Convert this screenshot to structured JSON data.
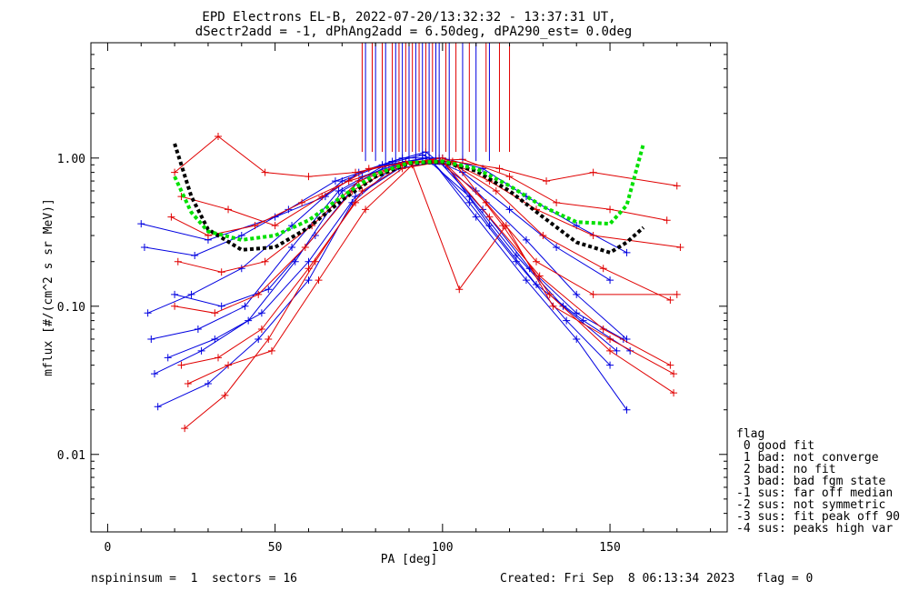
{
  "title_line1": "EPD Electrons EL-B, 2022-07-20/13:32:32 - 13:37:31 UT,",
  "title_line2": "dSectr2add = -1, dPhAng2add = 6.50deg, dPA290_est=   0.0deg",
  "footer_left": "nspininsum =  1  sectors = 16",
  "footer_right": "Created: Fri Sep  8 06:13:34 2023   flag = 0",
  "legend": {
    "title": "flag",
    "items": [
      " 0 good fit",
      " 1 bad: not converge",
      " 2 bad: no fit",
      " 3 bad: bad fgm state",
      "-1 sus: far off median",
      "-2 sus: not symmetric",
      "-3 sus: fit peak off 90",
      "-4 sus: peaks high var"
    ]
  },
  "colors": {
    "red": "#e00000",
    "blue": "#0000e0",
    "fit_black": "#000000",
    "fit_green": "#00e000"
  },
  "chart_data": {
    "type": "line",
    "xlabel": "PA [deg]",
    "ylabel": "mflux [#/(cm^2 s sr MeV)]",
    "xlim": [
      -5,
      185
    ],
    "ylim": [
      0.003,
      6
    ],
    "yscale": "log",
    "xticks": [
      0,
      50,
      100,
      150
    ],
    "xtick_labels": [
      "0",
      "50",
      "100",
      "150"
    ],
    "yticks": [
      0.01,
      0.1,
      1.0
    ],
    "ytick_labels": [
      "0.01",
      "0.10",
      "1.00"
    ],
    "series": [
      {
        "color": "blue",
        "points": [
          [
            10,
            0.36
          ],
          [
            30,
            0.28
          ],
          [
            50,
            0.4
          ],
          [
            65,
            0.55
          ],
          [
            75,
            0.8
          ],
          [
            88,
            1.0
          ],
          [
            100,
            1.0
          ],
          [
            112,
            0.85
          ],
          [
            125,
            0.55
          ],
          [
            140,
            0.35
          ],
          [
            155,
            0.23
          ]
        ]
      },
      {
        "color": "blue",
        "points": [
          [
            12,
            0.09
          ],
          [
            25,
            0.12
          ],
          [
            40,
            0.18
          ],
          [
            55,
            0.35
          ],
          [
            70,
            0.7
          ],
          [
            85,
            0.95
          ],
          [
            95,
            1.1
          ],
          [
            110,
            0.6
          ],
          [
            125,
            0.28
          ],
          [
            140,
            0.12
          ],
          [
            155,
            0.06
          ]
        ]
      },
      {
        "color": "blue",
        "points": [
          [
            14,
            0.035
          ],
          [
            28,
            0.05
          ],
          [
            42,
            0.08
          ],
          [
            56,
            0.2
          ],
          [
            70,
            0.6
          ],
          [
            84,
            0.9
          ],
          [
            96,
            1.0
          ],
          [
            108,
            0.5
          ],
          [
            122,
            0.2
          ],
          [
            137,
            0.08
          ],
          [
            150,
            0.04
          ]
        ]
      },
      {
        "color": "blue",
        "points": [
          [
            15,
            0.021
          ],
          [
            30,
            0.03
          ],
          [
            45,
            0.06
          ],
          [
            60,
            0.15
          ],
          [
            73,
            0.5
          ],
          [
            86,
            0.9
          ],
          [
            97,
            0.95
          ],
          [
            110,
            0.4
          ],
          [
            125,
            0.15
          ],
          [
            140,
            0.06
          ],
          [
            155,
            0.02
          ]
        ]
      },
      {
        "color": "blue",
        "points": [
          [
            11,
            0.25
          ],
          [
            26,
            0.22
          ],
          [
            40,
            0.3
          ],
          [
            54,
            0.45
          ],
          [
            68,
            0.7
          ],
          [
            82,
            0.9
          ],
          [
            94,
            1.05
          ],
          [
            106,
            0.8
          ],
          [
            120,
            0.45
          ],
          [
            134,
            0.25
          ],
          [
            150,
            0.15
          ]
        ]
      },
      {
        "color": "blue",
        "points": [
          [
            13,
            0.06
          ],
          [
            27,
            0.07
          ],
          [
            41,
            0.1
          ],
          [
            55,
            0.25
          ],
          [
            69,
            0.6
          ],
          [
            83,
            0.9
          ],
          [
            95,
            1.0
          ],
          [
            108,
            0.55
          ],
          [
            122,
            0.22
          ],
          [
            136,
            0.1
          ],
          [
            152,
            0.05
          ]
        ]
      },
      {
        "color": "blue",
        "points": [
          [
            18,
            0.045
          ],
          [
            32,
            0.06
          ],
          [
            46,
            0.09
          ],
          [
            60,
            0.2
          ],
          [
            74,
            0.55
          ],
          [
            87,
            0.85
          ],
          [
            99,
            0.95
          ],
          [
            112,
            0.45
          ],
          [
            126,
            0.18
          ],
          [
            140,
            0.09
          ],
          [
            154,
            0.06
          ]
        ]
      },
      {
        "color": "blue",
        "points": [
          [
            20,
            0.12
          ],
          [
            34,
            0.1
          ],
          [
            48,
            0.13
          ],
          [
            62,
            0.3
          ],
          [
            76,
            0.75
          ],
          [
            89,
            0.95
          ],
          [
            101,
            0.9
          ],
          [
            114,
            0.35
          ],
          [
            128,
            0.14
          ],
          [
            142,
            0.08
          ],
          [
            156,
            0.05
          ]
        ]
      },
      {
        "color": "red",
        "points": [
          [
            20,
            0.8
          ],
          [
            33,
            1.4
          ],
          [
            47,
            0.8
          ],
          [
            60,
            0.75
          ],
          [
            74,
            0.8
          ],
          [
            90,
            0.95
          ],
          [
            103,
            0.95
          ],
          [
            117,
            0.85
          ],
          [
            131,
            0.7
          ],
          [
            145,
            0.8
          ],
          [
            170,
            0.65
          ]
        ]
      },
      {
        "color": "red",
        "points": [
          [
            19,
            0.4
          ],
          [
            30,
            0.3
          ],
          [
            44,
            0.35
          ],
          [
            58,
            0.5
          ],
          [
            72,
            0.7
          ],
          [
            88,
            0.9
          ],
          [
            100,
            1.0
          ],
          [
            114,
            0.7
          ],
          [
            128,
            0.45
          ],
          [
            145,
            0.3
          ],
          [
            171,
            0.25
          ]
        ]
      },
      {
        "color": "red",
        "points": [
          [
            20,
            0.1
          ],
          [
            32,
            0.09
          ],
          [
            45,
            0.12
          ],
          [
            59,
            0.25
          ],
          [
            73,
            0.6
          ],
          [
            87,
            0.9
          ],
          [
            99,
            1.0
          ],
          [
            113,
            0.5
          ],
          [
            128,
            0.2
          ],
          [
            145,
            0.12
          ],
          [
            170,
            0.12
          ]
        ]
      },
      {
        "color": "red",
        "points": [
          [
            22,
            0.04
          ],
          [
            33,
            0.045
          ],
          [
            46,
            0.07
          ],
          [
            60,
            0.18
          ],
          [
            74,
            0.5
          ],
          [
            88,
            0.85
          ],
          [
            100,
            0.95
          ],
          [
            114,
            0.4
          ],
          [
            129,
            0.16
          ],
          [
            148,
            0.07
          ],
          [
            168,
            0.04
          ]
        ]
      },
      {
        "color": "red",
        "points": [
          [
            23,
            0.015
          ],
          [
            35,
            0.025
          ],
          [
            48,
            0.06
          ],
          [
            62,
            0.2
          ],
          [
            76,
            0.6
          ],
          [
            90,
            0.95
          ],
          [
            104,
            0.9
          ],
          [
            118,
            0.35
          ],
          [
            132,
            0.12
          ],
          [
            150,
            0.05
          ],
          [
            169,
            0.026
          ]
        ]
      },
      {
        "color": "red",
        "points": [
          [
            21,
            0.2
          ],
          [
            34,
            0.17
          ],
          [
            47,
            0.2
          ],
          [
            61,
            0.35
          ],
          [
            75,
            0.7
          ],
          [
            89,
            0.92
          ],
          [
            102,
            0.95
          ],
          [
            116,
            0.6
          ],
          [
            130,
            0.3
          ],
          [
            148,
            0.18
          ],
          [
            168,
            0.11
          ]
        ]
      },
      {
        "color": "red",
        "points": [
          [
            24,
            0.03
          ],
          [
            36,
            0.04
          ],
          [
            49,
            0.05
          ],
          [
            63,
            0.15
          ],
          [
            77,
            0.45
          ],
          [
            91,
            0.9
          ],
          [
            105,
            0.13
          ],
          [
            119,
            0.35
          ],
          [
            133,
            0.1
          ],
          [
            150,
            0.06
          ],
          [
            169,
            0.035
          ]
        ]
      },
      {
        "color": "red",
        "points": [
          [
            22,
            0.55
          ],
          [
            36,
            0.45
          ],
          [
            50,
            0.35
          ],
          [
            64,
            0.55
          ],
          [
            78,
            0.85
          ],
          [
            92,
            0.95
          ],
          [
            106,
            0.98
          ],
          [
            120,
            0.75
          ],
          [
            134,
            0.5
          ],
          [
            150,
            0.45
          ],
          [
            167,
            0.38
          ]
        ]
      }
    ],
    "fits": [
      {
        "color": "fit_black",
        "points": [
          [
            20,
            1.25
          ],
          [
            25,
            0.55
          ],
          [
            30,
            0.33
          ],
          [
            40,
            0.24
          ],
          [
            50,
            0.25
          ],
          [
            60,
            0.34
          ],
          [
            70,
            0.52
          ],
          [
            80,
            0.75
          ],
          [
            90,
            0.92
          ],
          [
            100,
            0.94
          ],
          [
            110,
            0.82
          ],
          [
            120,
            0.6
          ],
          [
            130,
            0.4
          ],
          [
            140,
            0.27
          ],
          [
            150,
            0.23
          ],
          [
            155,
            0.27
          ],
          [
            160,
            0.34
          ]
        ]
      },
      {
        "color": "fit_green",
        "points": [
          [
            20,
            0.75
          ],
          [
            25,
            0.43
          ],
          [
            30,
            0.32
          ],
          [
            40,
            0.28
          ],
          [
            50,
            0.3
          ],
          [
            60,
            0.38
          ],
          [
            70,
            0.55
          ],
          [
            80,
            0.78
          ],
          [
            90,
            0.93
          ],
          [
            100,
            0.95
          ],
          [
            110,
            0.85
          ],
          [
            120,
            0.65
          ],
          [
            130,
            0.47
          ],
          [
            140,
            0.37
          ],
          [
            150,
            0.36
          ],
          [
            155,
            0.48
          ],
          [
            160,
            1.25
          ]
        ]
      }
    ],
    "spikes": {
      "red_x": [
        76,
        79,
        82,
        85,
        87,
        89,
        91,
        93,
        95,
        97,
        101,
        104,
        108,
        113,
        117,
        120
      ],
      "blue_x": [
        77,
        80,
        83,
        86,
        88,
        90,
        92,
        94,
        96,
        98,
        99,
        102,
        106,
        110,
        114
      ],
      "spike_bottom_flux": 1.1
    }
  }
}
